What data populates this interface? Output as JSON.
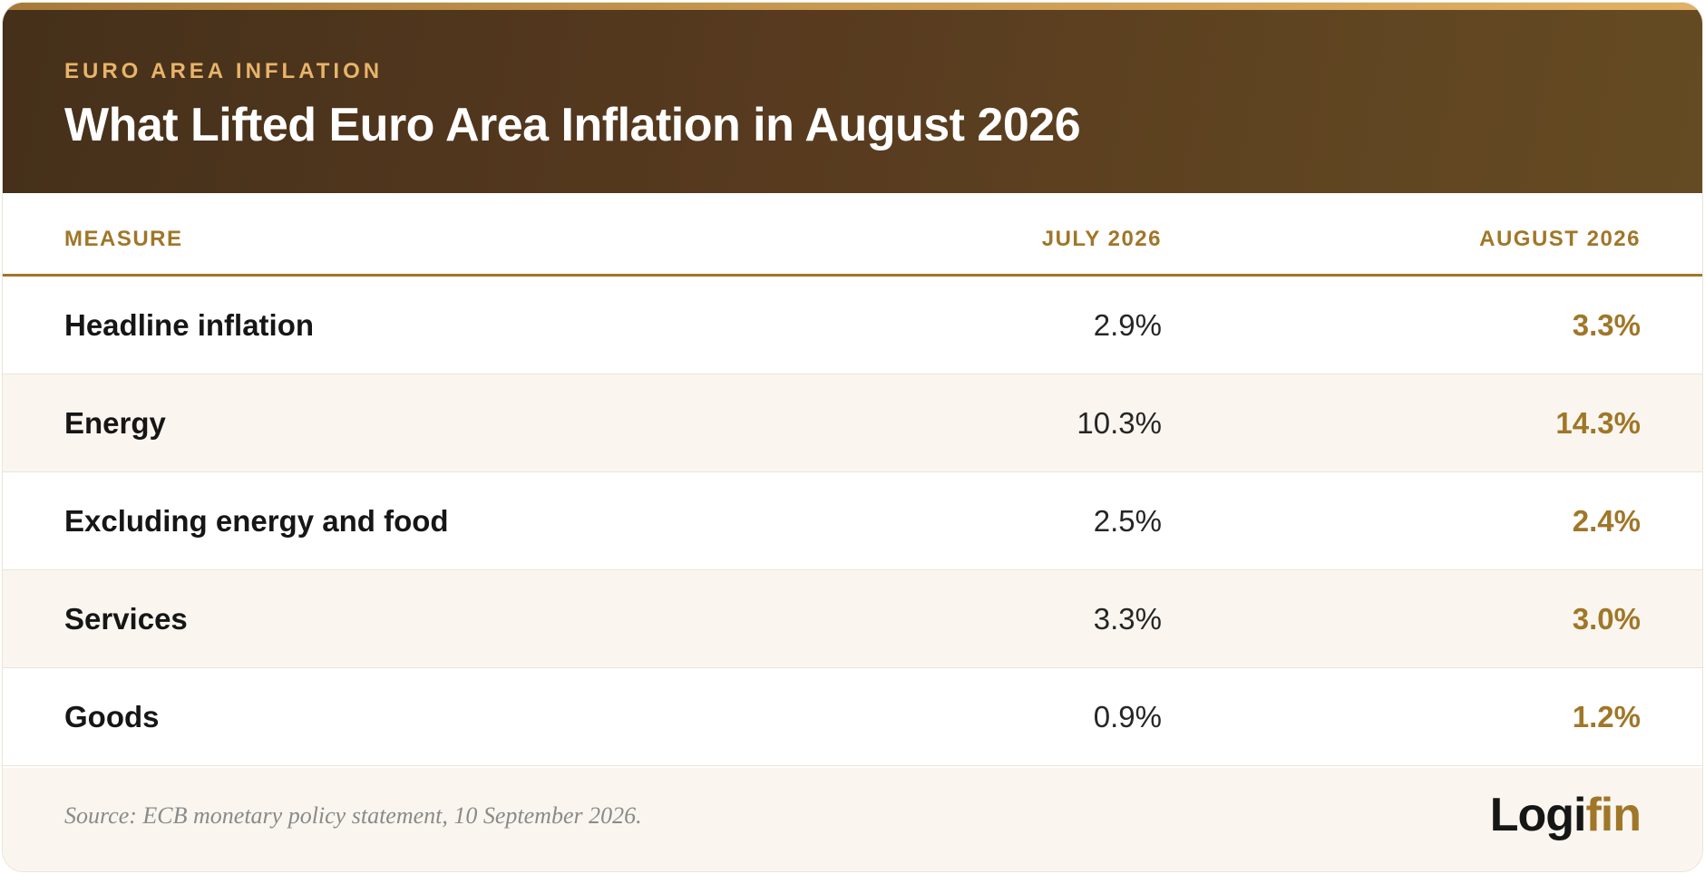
{
  "header": {
    "kicker": "EURO AREA INFLATION",
    "title": "What Lifted Euro Area Inflation in August 2026"
  },
  "colors": {
    "accent": "#a07628",
    "header_dark": "#45301a",
    "kicker": "#e7b46a",
    "row_alt": "#faf6ef"
  },
  "chart_data": {
    "type": "table",
    "title": "What Lifted Euro Area Inflation in August 2026",
    "subtitle": "EURO AREA INFLATION",
    "columns": [
      "MEASURE",
      "JULY 2026",
      "AUGUST 2026"
    ],
    "rows": [
      {
        "measure": "Headline inflation",
        "july": "2.9%",
        "august": "3.3%"
      },
      {
        "measure": "Energy",
        "july": "10.3%",
        "august": "14.3%"
      },
      {
        "measure": "Excluding energy and food",
        "july": "2.5%",
        "august": "2.4%"
      },
      {
        "measure": "Services",
        "july": "3.3%",
        "august": "3.0%"
      },
      {
        "measure": "Goods",
        "july": "0.9%",
        "august": "1.2%"
      }
    ],
    "series": [
      {
        "name": "JULY 2026",
        "values": [
          2.9,
          10.3,
          2.5,
          3.3,
          0.9
        ]
      },
      {
        "name": "AUGUST 2026",
        "values": [
          3.3,
          14.3,
          2.4,
          3.0,
          1.2
        ]
      }
    ],
    "categories": [
      "Headline inflation",
      "Energy",
      "Excluding energy and food",
      "Services",
      "Goods"
    ]
  },
  "footer": {
    "source": "Source: ECB monetary policy statement, 10 September 2026.",
    "logo_part1": "Logi",
    "logo_part2": "fin"
  }
}
